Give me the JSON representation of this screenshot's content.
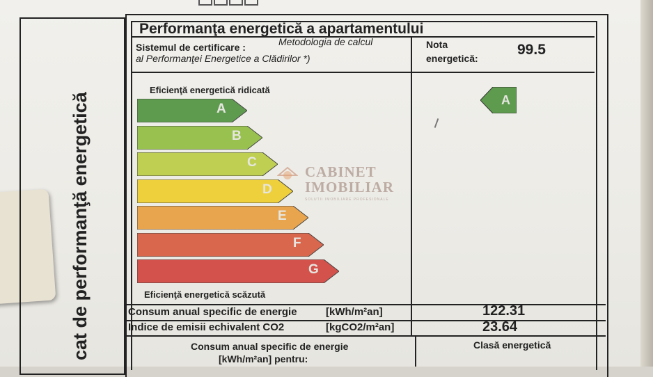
{
  "header": {
    "title": "Performanţa energetică a apartamentului",
    "vertical_title": "cat de performanţă energetică"
  },
  "certification": {
    "label": "Sistemul de certificare :",
    "method_line1": "Metodologia de calcul",
    "method_line2": "al Performanţei Energetice a Clădirilor *)"
  },
  "grade": {
    "label_line1": "Nota",
    "label_line2": "energetică:",
    "value": "99.5"
  },
  "scale": {
    "top_label": "Eficienţă energetică ridicată",
    "bottom_label": "Eficienţă energetică scăzută",
    "classes": [
      {
        "letter": "A",
        "color": "#5f9b4f"
      },
      {
        "letter": "B",
        "color": "#98c14f"
      },
      {
        "letter": "C",
        "color": "#bfcf52"
      },
      {
        "letter": "D",
        "color": "#eecf3c"
      },
      {
        "letter": "E",
        "color": "#e9a54e"
      },
      {
        "letter": "F",
        "color": "#d9674e"
      },
      {
        "letter": "G",
        "color": "#d4524c"
      }
    ],
    "current_class": "A",
    "current_class_color": "#5f9b4f"
  },
  "watermark": {
    "line1": "CABINET",
    "line2": "IMOBILIAR",
    "sub": "SOLUTII IMOBILIARE PROFESIONALE"
  },
  "consumption": {
    "label": "Consum anual specific de energie",
    "unit": "[kWh/m²an]",
    "value": "122.31"
  },
  "emissions": {
    "label": "Indice de emisii echivalent CO2",
    "unit": "[kgCO2/m²an]",
    "value": "23.64"
  },
  "bottom": {
    "left_line1": "Consum anual specific de energie",
    "left_line2": "[kWh/m²an] pentru:",
    "right": "Clasă energetică"
  }
}
